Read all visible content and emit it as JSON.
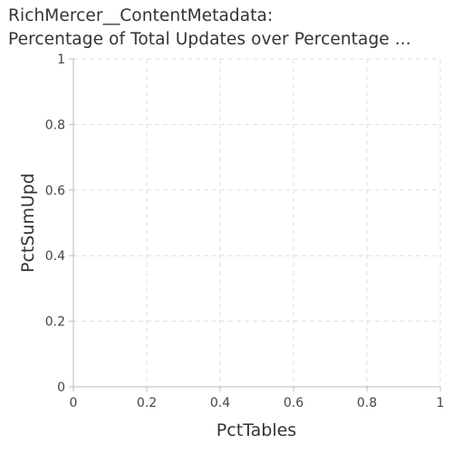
{
  "chart_data": {
    "type": "scatter",
    "title_lines": [
      "RichMercer__ContentMetadata:",
      "Percentage of Total Updates over Percentage ..."
    ],
    "xlabel": "PctTables",
    "ylabel": "PctSumUpd",
    "xlim": [
      0,
      1
    ],
    "ylim": [
      0,
      1
    ],
    "x_ticks": [
      0,
      0.2,
      0.4,
      0.6,
      0.8,
      1
    ],
    "y_ticks": [
      0,
      0.2,
      0.4,
      0.6,
      0.8,
      1
    ],
    "x_tick_labels": [
      "0",
      "0.2",
      "0.4",
      "0.6",
      "0.8",
      "1"
    ],
    "y_tick_labels": [
      "0",
      "0.2",
      "0.4",
      "0.6",
      "0.8",
      "1"
    ],
    "grid": true,
    "series": [
      {
        "points": []
      }
    ],
    "colors": {
      "grid": "#dddddd",
      "axis": "#bbbbbb",
      "text": "#333333"
    }
  }
}
